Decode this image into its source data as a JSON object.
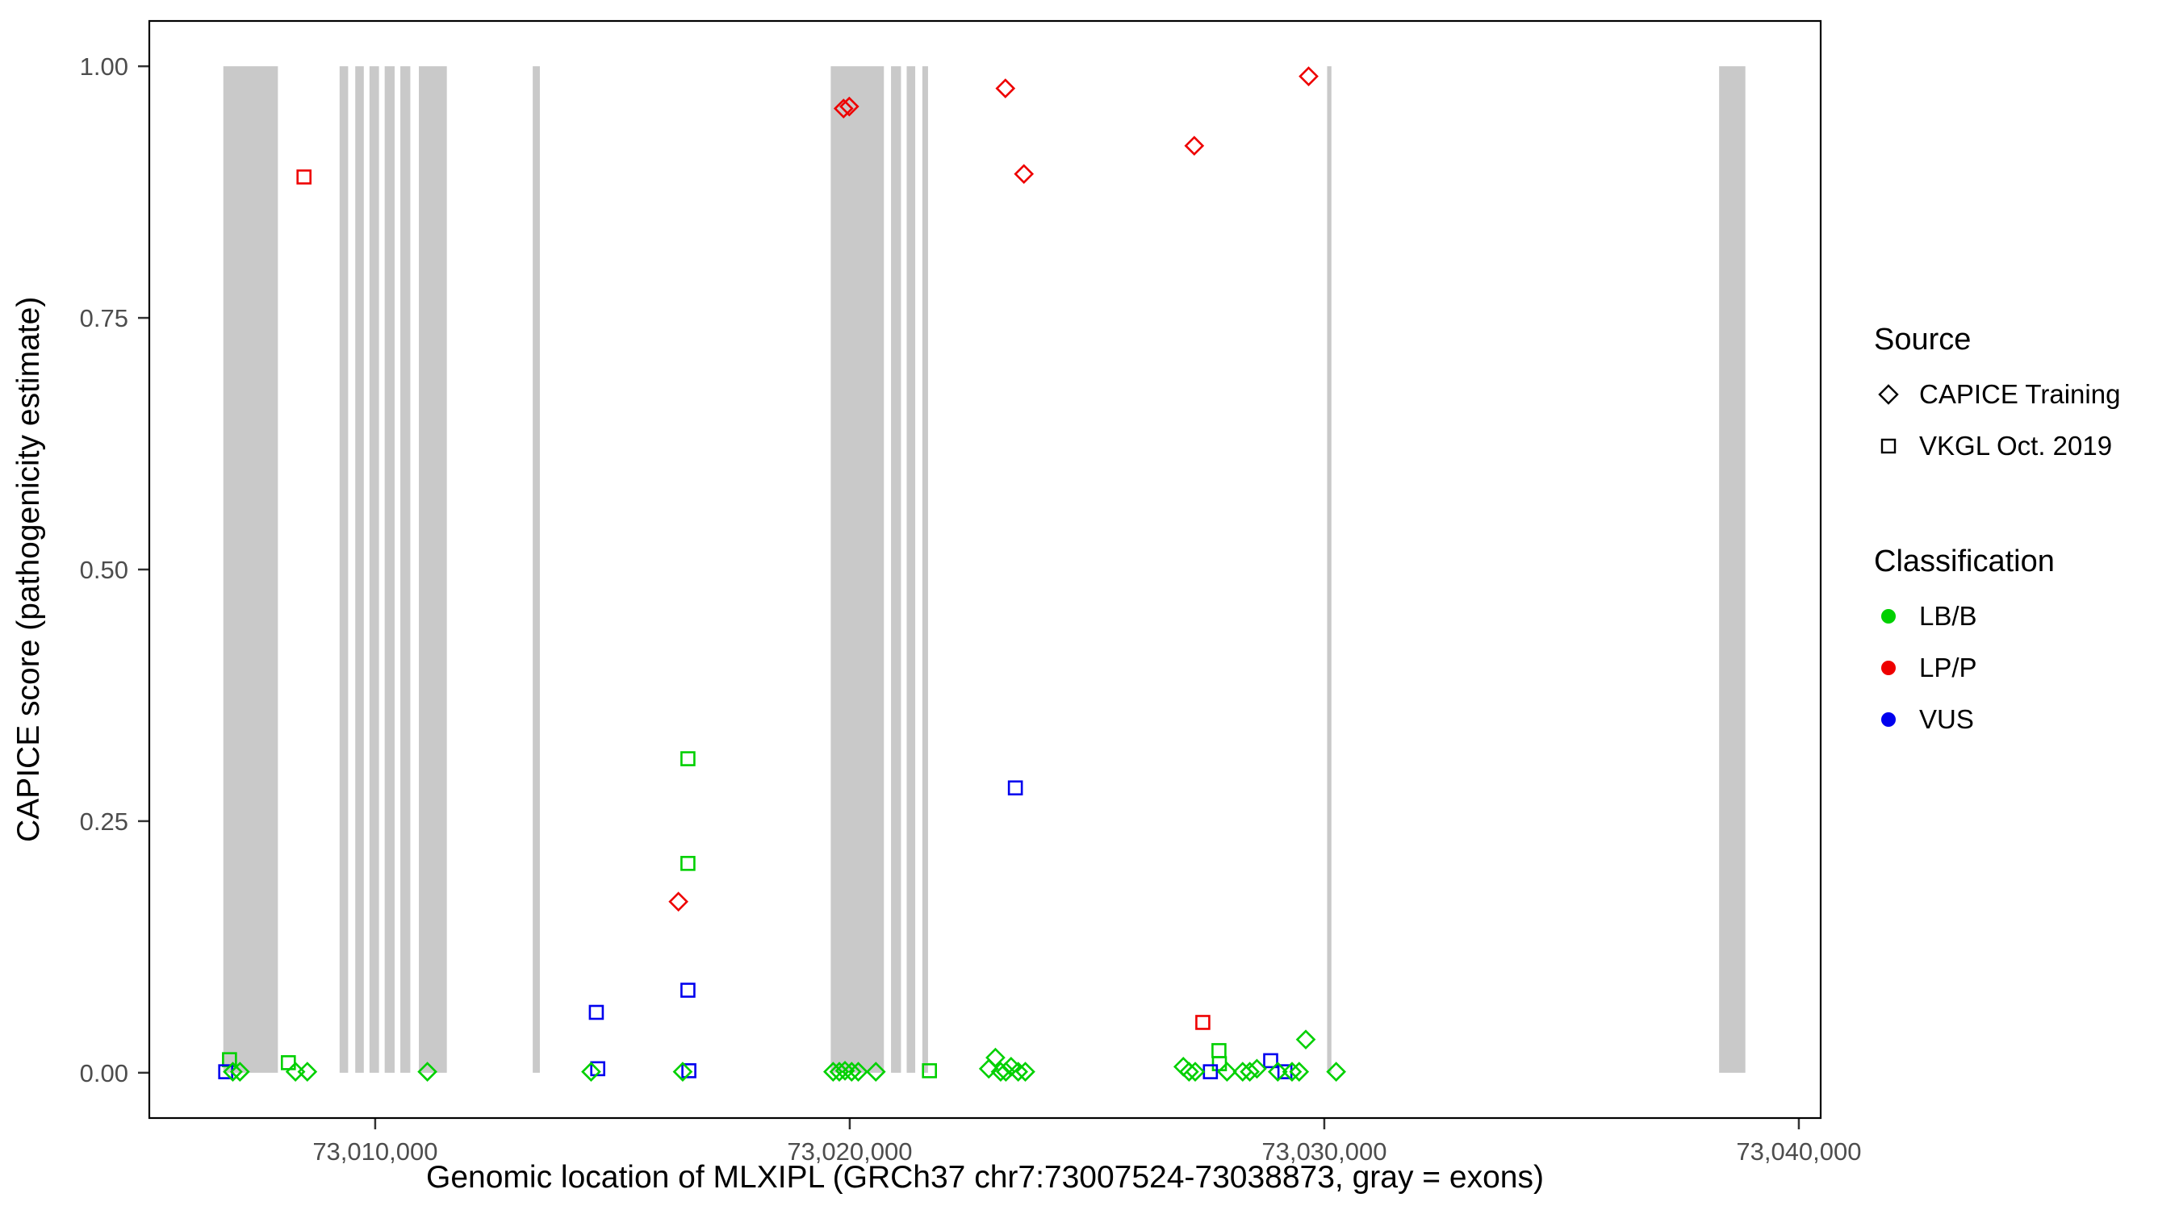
{
  "figure": {
    "background": "#ffffff"
  },
  "colors": {
    "exon": "#c9c9c9",
    "panel_border": "#000000",
    "tick": "#333333",
    "tick_label": "#4d4d4d",
    "classification": {
      "LB/B": "#00d000",
      "LP/P": "#ee0000",
      "VUS": "#0000ee"
    }
  },
  "legend": {
    "source": {
      "title": "Source",
      "items": [
        {
          "label": "CAPICE Training",
          "shape": "diamond"
        },
        {
          "label": "VKGL Oct. 2019",
          "shape": "square"
        }
      ]
    },
    "classification": {
      "title": "Classification",
      "items": [
        {
          "label": "LB/B",
          "color": "#00d000"
        },
        {
          "label": "LP/P",
          "color": "#ee0000"
        },
        {
          "label": "VUS",
          "color": "#0000ee"
        }
      ]
    }
  },
  "chart_data": {
    "type": "scatter",
    "title": "",
    "xlabel": "Genomic location of MLXIPL (GRCh37 chr7:73007524-73038873, gray = exons)",
    "ylabel": "CAPICE score (pathogenicity estimate)",
    "xlim": [
      73005240,
      73040460
    ],
    "ylim": [
      -0.045,
      1.045
    ],
    "grid": false,
    "legend_position": "right",
    "x_ticks": [
      {
        "value": 73010000,
        "label": "73,010,000"
      },
      {
        "value": 73020000,
        "label": "73,020,000"
      },
      {
        "value": 73030000,
        "label": "73,030,000"
      },
      {
        "value": 73040000,
        "label": "73,040,000"
      }
    ],
    "y_ticks": [
      {
        "value": 0.0,
        "label": "0.00"
      },
      {
        "value": 0.25,
        "label": "0.25"
      },
      {
        "value": 0.5,
        "label": "0.50"
      },
      {
        "value": 0.75,
        "label": "0.75"
      },
      {
        "value": 1.0,
        "label": "1.00"
      }
    ],
    "exon_regions": [
      [
        73006800,
        73007950
      ],
      [
        73009250,
        73009430
      ],
      [
        73009580,
        73009760
      ],
      [
        73009880,
        73010080
      ],
      [
        73010200,
        73010410
      ],
      [
        73010530,
        73010740
      ],
      [
        73010920,
        73011510
      ],
      [
        73013320,
        73013470
      ],
      [
        73019600,
        73020720
      ],
      [
        73020870,
        73021080
      ],
      [
        73021200,
        73021380
      ],
      [
        73021530,
        73021650
      ],
      [
        73030060,
        73030150
      ],
      [
        73038320,
        73038873
      ]
    ],
    "points": [
      {
        "pos": 73008500,
        "score": 0.89,
        "source": "VKGL Oct. 2019",
        "classification": "LP/P"
      },
      {
        "pos": 73016390,
        "score": 0.17,
        "source": "CAPICE Training",
        "classification": "LP/P"
      },
      {
        "pos": 73019870,
        "score": 0.958,
        "source": "CAPICE Training",
        "classification": "LP/P"
      },
      {
        "pos": 73019990,
        "score": 0.96,
        "source": "CAPICE Training",
        "classification": "LP/P"
      },
      {
        "pos": 73023280,
        "score": 0.978,
        "source": "CAPICE Training",
        "classification": "LP/P"
      },
      {
        "pos": 73023670,
        "score": 0.893,
        "source": "CAPICE Training",
        "classification": "LP/P"
      },
      {
        "pos": 73027260,
        "score": 0.921,
        "source": "CAPICE Training",
        "classification": "LP/P"
      },
      {
        "pos": 73027440,
        "score": 0.05,
        "source": "VKGL Oct. 2019",
        "classification": "LP/P"
      },
      {
        "pos": 73029670,
        "score": 0.99,
        "source": "CAPICE Training",
        "classification": "LP/P"
      },
      {
        "pos": 73006930,
        "score": 0.013,
        "source": "VKGL Oct. 2019",
        "classification": "LB/B"
      },
      {
        "pos": 73008170,
        "score": 0.01,
        "source": "VKGL Oct. 2019",
        "classification": "LB/B"
      },
      {
        "pos": 73016590,
        "score": 0.312,
        "source": "VKGL Oct. 2019",
        "classification": "LB/B"
      },
      {
        "pos": 73016590,
        "score": 0.208,
        "source": "VKGL Oct. 2019",
        "classification": "LB/B"
      },
      {
        "pos": 73021680,
        "score": 0.002,
        "source": "VKGL Oct. 2019",
        "classification": "LB/B"
      },
      {
        "pos": 73027780,
        "score": 0.022,
        "source": "VKGL Oct. 2019",
        "classification": "LB/B"
      },
      {
        "pos": 73027790,
        "score": 0.009,
        "source": "VKGL Oct. 2019",
        "classification": "LB/B"
      },
      {
        "pos": 73006850,
        "score": 0.001,
        "source": "VKGL Oct. 2019",
        "classification": "VUS"
      },
      {
        "pos": 73014660,
        "score": 0.06,
        "source": "VKGL Oct. 2019",
        "classification": "VUS"
      },
      {
        "pos": 73014690,
        "score": 0.004,
        "source": "VKGL Oct. 2019",
        "classification": "VUS"
      },
      {
        "pos": 73016590,
        "score": 0.082,
        "source": "VKGL Oct. 2019",
        "classification": "VUS"
      },
      {
        "pos": 73016610,
        "score": 0.002,
        "source": "VKGL Oct. 2019",
        "classification": "VUS"
      },
      {
        "pos": 73023490,
        "score": 0.283,
        "source": "VKGL Oct. 2019",
        "classification": "VUS"
      },
      {
        "pos": 73027600,
        "score": 0.001,
        "source": "VKGL Oct. 2019",
        "classification": "VUS"
      },
      {
        "pos": 73028870,
        "score": 0.012,
        "source": "VKGL Oct. 2019",
        "classification": "VUS"
      },
      {
        "pos": 73029170,
        "score": 0.001,
        "source": "VKGL Oct. 2019",
        "classification": "VUS"
      },
      {
        "pos": 73007000,
        "score": 0.001,
        "source": "CAPICE Training",
        "classification": "LB/B"
      },
      {
        "pos": 73007150,
        "score": 0.001,
        "source": "CAPICE Training",
        "classification": "LB/B"
      },
      {
        "pos": 73008320,
        "score": 0.001,
        "source": "CAPICE Training",
        "classification": "LB/B"
      },
      {
        "pos": 73008570,
        "score": 0.001,
        "source": "CAPICE Training",
        "classification": "LB/B"
      },
      {
        "pos": 73011100,
        "score": 0.001,
        "source": "CAPICE Training",
        "classification": "LB/B"
      },
      {
        "pos": 73014550,
        "score": 0.001,
        "source": "CAPICE Training",
        "classification": "LB/B"
      },
      {
        "pos": 73016480,
        "score": 0.001,
        "source": "CAPICE Training",
        "classification": "LB/B"
      },
      {
        "pos": 73019650,
        "score": 0.001,
        "source": "CAPICE Training",
        "classification": "LB/B"
      },
      {
        "pos": 73019780,
        "score": 0.001,
        "source": "CAPICE Training",
        "classification": "LB/B"
      },
      {
        "pos": 73019900,
        "score": 0.002,
        "source": "CAPICE Training",
        "classification": "LB/B"
      },
      {
        "pos": 73020040,
        "score": 0.001,
        "source": "CAPICE Training",
        "classification": "LB/B"
      },
      {
        "pos": 73020180,
        "score": 0.001,
        "source": "CAPICE Training",
        "classification": "LB/B"
      },
      {
        "pos": 73020550,
        "score": 0.001,
        "source": "CAPICE Training",
        "classification": "LB/B"
      },
      {
        "pos": 73022930,
        "score": 0.004,
        "source": "CAPICE Training",
        "classification": "LB/B"
      },
      {
        "pos": 73023070,
        "score": 0.015,
        "source": "CAPICE Training",
        "classification": "LB/B"
      },
      {
        "pos": 73023180,
        "score": 0.001,
        "source": "CAPICE Training",
        "classification": "LB/B"
      },
      {
        "pos": 73023290,
        "score": 0.001,
        "source": "CAPICE Training",
        "classification": "LB/B"
      },
      {
        "pos": 73023400,
        "score": 0.006,
        "source": "CAPICE Training",
        "classification": "LB/B"
      },
      {
        "pos": 73023550,
        "score": 0.001,
        "source": "CAPICE Training",
        "classification": "LB/B"
      },
      {
        "pos": 73023700,
        "score": 0.001,
        "source": "CAPICE Training",
        "classification": "LB/B"
      },
      {
        "pos": 73027030,
        "score": 0.006,
        "source": "CAPICE Training",
        "classification": "LB/B"
      },
      {
        "pos": 73027150,
        "score": 0.001,
        "source": "CAPICE Training",
        "classification": "LB/B"
      },
      {
        "pos": 73027280,
        "score": 0.001,
        "source": "CAPICE Training",
        "classification": "LB/B"
      },
      {
        "pos": 73027950,
        "score": 0.001,
        "source": "CAPICE Training",
        "classification": "LB/B"
      },
      {
        "pos": 73028280,
        "score": 0.001,
        "source": "CAPICE Training",
        "classification": "LB/B"
      },
      {
        "pos": 73028430,
        "score": 0.001,
        "source": "CAPICE Training",
        "classification": "LB/B"
      },
      {
        "pos": 73028580,
        "score": 0.004,
        "source": "CAPICE Training",
        "classification": "LB/B"
      },
      {
        "pos": 73029020,
        "score": 0.001,
        "source": "CAPICE Training",
        "classification": "LB/B"
      },
      {
        "pos": 73029320,
        "score": 0.001,
        "source": "CAPICE Training",
        "classification": "LB/B"
      },
      {
        "pos": 73029470,
        "score": 0.001,
        "source": "CAPICE Training",
        "classification": "LB/B"
      },
      {
        "pos": 73029610,
        "score": 0.033,
        "source": "CAPICE Training",
        "classification": "LB/B"
      },
      {
        "pos": 73030250,
        "score": 0.001,
        "source": "CAPICE Training",
        "classification": "LB/B"
      }
    ]
  }
}
